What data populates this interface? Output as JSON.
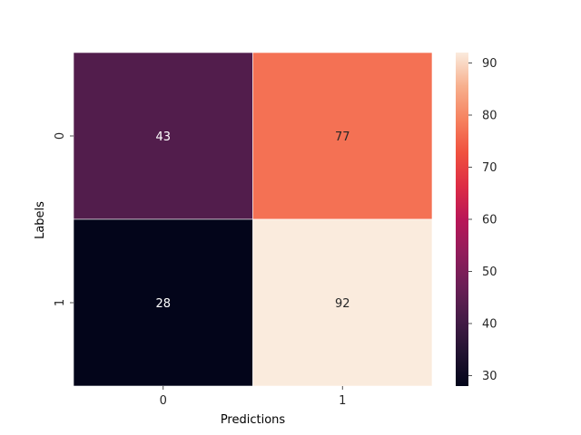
{
  "chart_data": {
    "type": "heatmap",
    "title": "",
    "xlabel": "Predictions",
    "ylabel": "Labels",
    "x_categories": [
      "0",
      "1"
    ],
    "y_categories": [
      "0",
      "1"
    ],
    "values": [
      [
        43,
        77
      ],
      [
        28,
        92
      ]
    ],
    "annotations": [
      [
        "43",
        "77"
      ],
      [
        "28",
        "92"
      ]
    ],
    "colorbar": {
      "range": [
        28,
        92
      ],
      "ticks": [
        30,
        40,
        50,
        60,
        70,
        80,
        90
      ],
      "tick_labels": [
        "30",
        "40",
        "50",
        "60",
        "70",
        "80",
        "90"
      ]
    },
    "colormap": "rocket",
    "annotation_colors": {
      "on_dark": "#ffffff",
      "on_light": "#262626"
    },
    "grid": false
  }
}
